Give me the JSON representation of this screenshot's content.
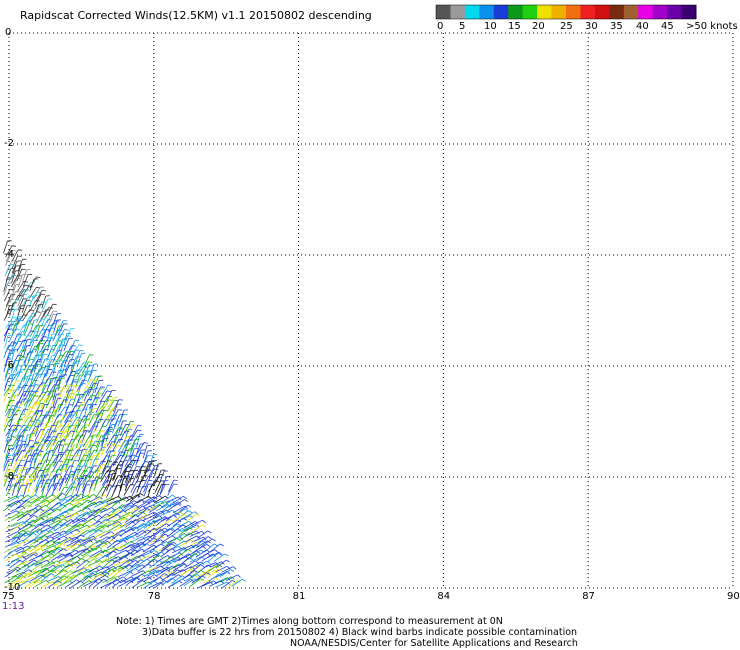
{
  "title": "Rapidscat Corrected Winds(12.5KM) v1.1 20150802 descending",
  "map": {
    "lon_ticks": [
      "75",
      "78",
      "81",
      "84",
      "87",
      "90"
    ],
    "lat_ticks": [
      "0",
      "-2",
      "-4",
      "-6",
      "-8",
      "-10"
    ],
    "lon_range": [
      75,
      90
    ],
    "lat_range": [
      -10,
      0
    ],
    "grid": "dotted",
    "time_label": "1:13"
  },
  "colorbar": {
    "labels": [
      "0",
      "5",
      "10",
      "15",
      "20",
      "25",
      "30",
      "35",
      "40",
      "45",
      ">50 knots"
    ],
    "colors": [
      "#555555",
      "#9a9a9a",
      "#00d8f0",
      "#0a90e8",
      "#1a3cd8",
      "#0b9a1a",
      "#20d010",
      "#f0e000",
      "#f0b000",
      "#f07010",
      "#f02020",
      "#d01010",
      "#7a2a10",
      "#a06030",
      "#e800e8",
      "#a000c8",
      "#6a00a8",
      "#3a0070"
    ]
  },
  "notes": {
    "line1": "Note: 1) Times are GMT 2)Times along bottom correspond to measurement at 0N",
    "line2": "3)Data buffer is 22 hrs from 20150802 4) Black wind barbs indicate possible contamination",
    "line3": "NOAA/NESDIS/Center for Satellite Applications and Research"
  }
}
